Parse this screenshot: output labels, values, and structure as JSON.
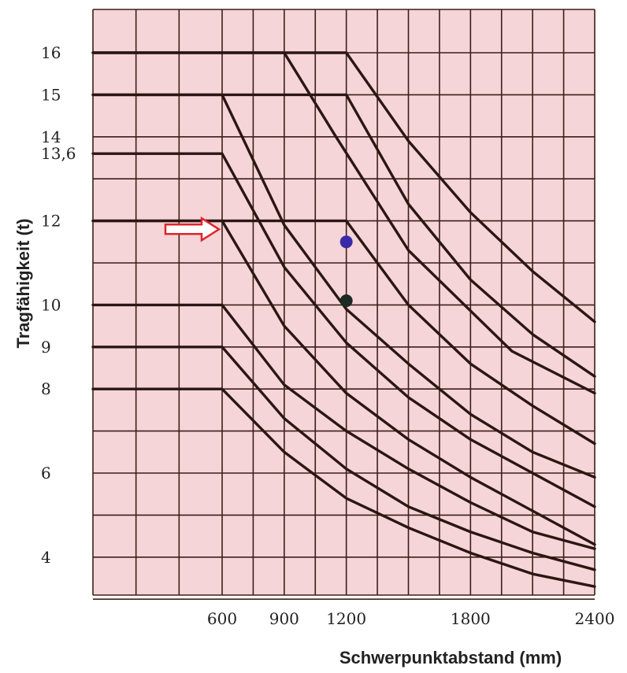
{
  "chart_data": {
    "type": "line",
    "title": "",
    "xlabel": "Schwerpunktabstand (mm)",
    "ylabel": "Tragfähigkeit (t)",
    "xlim": [
      0,
      2400
    ],
    "x_ticks": [
      600,
      900,
      1200,
      1800,
      2400
    ],
    "y_ticks": [
      "4",
      "6",
      "8",
      "9",
      "10",
      "12",
      "13,6",
      "14",
      "15",
      "16"
    ],
    "grid": true,
    "background_color": "#f6d5d8",
    "grid_color": "#3c1f18",
    "series": [
      {
        "points": [
          [
            0,
            16
          ],
          [
            900,
            16
          ],
          [
            1150,
            14
          ],
          [
            1500,
            11.3
          ],
          [
            2000,
            8.9
          ],
          [
            2400,
            7.9
          ]
        ]
      },
      {
        "points": [
          [
            0,
            16
          ],
          [
            1200,
            16
          ],
          [
            1500,
            13.9
          ],
          [
            1800,
            12.2
          ],
          [
            2100,
            10.8
          ],
          [
            2400,
            9.6
          ]
        ]
      },
      {
        "points": [
          [
            0,
            15
          ],
          [
            600,
            15
          ],
          [
            900,
            11.9
          ],
          [
            1200,
            9.9
          ],
          [
            1500,
            8.6
          ],
          [
            1800,
            7.4
          ],
          [
            2100,
            6.5
          ],
          [
            2400,
            5.9
          ]
        ]
      },
      {
        "points": [
          [
            0,
            15
          ],
          [
            1200,
            15
          ],
          [
            1500,
            12.4
          ],
          [
            1800,
            10.6
          ],
          [
            2100,
            9.3
          ],
          [
            2400,
            8.3
          ]
        ]
      },
      {
        "points": [
          [
            0,
            13.6
          ],
          [
            600,
            13.6
          ],
          [
            900,
            10.9
          ],
          [
            1200,
            9.1
          ],
          [
            1500,
            7.8
          ],
          [
            1800,
            6.8
          ],
          [
            2100,
            6.0
          ],
          [
            2400,
            5.2
          ]
        ]
      },
      {
        "points": [
          [
            0,
            12
          ],
          [
            1200,
            12
          ],
          [
            1500,
            10.0
          ],
          [
            1800,
            8.6
          ],
          [
            2100,
            7.6
          ],
          [
            2400,
            6.7
          ]
        ]
      },
      {
        "points": [
          [
            0,
            12
          ],
          [
            600,
            12
          ],
          [
            900,
            9.5
          ],
          [
            1200,
            7.9
          ],
          [
            1500,
            6.8
          ],
          [
            1800,
            5.9
          ],
          [
            2100,
            5.1
          ],
          [
            2400,
            4.3
          ]
        ]
      },
      {
        "points": [
          [
            0,
            10
          ],
          [
            600,
            10
          ],
          [
            900,
            8.1
          ],
          [
            1200,
            7.0
          ],
          [
            1500,
            6.1
          ],
          [
            1800,
            5.3
          ],
          [
            2100,
            4.6
          ],
          [
            2400,
            4.2
          ]
        ]
      },
      {
        "points": [
          [
            0,
            9
          ],
          [
            600,
            9
          ],
          [
            900,
            7.3
          ],
          [
            1200,
            6.1
          ],
          [
            1500,
            5.2
          ],
          [
            1800,
            4.6
          ],
          [
            2100,
            4.1
          ],
          [
            2400,
            3.7
          ]
        ]
      },
      {
        "points": [
          [
            0,
            8
          ],
          [
            600,
            8
          ],
          [
            900,
            6.5
          ],
          [
            1200,
            5.4
          ],
          [
            1500,
            4.7
          ],
          [
            1800,
            4.1
          ],
          [
            2100,
            3.6
          ],
          [
            2400,
            3.3
          ]
        ]
      }
    ],
    "markers": [
      {
        "x": 1200,
        "y": 11.5,
        "color": "#3b2aa8"
      },
      {
        "x": 1200,
        "y": 10.1,
        "color": "#1b2a22"
      }
    ],
    "annotation": {
      "shape": "arrow",
      "x": 600,
      "y": 11.8,
      "color": "#e0242a"
    }
  }
}
